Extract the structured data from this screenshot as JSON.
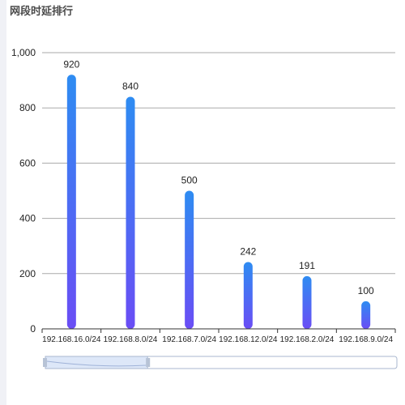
{
  "panel": {
    "title": "网段时延排行"
  },
  "colors": {
    "bar_top": "#2e8cf2",
    "bar_bottom": "#6a4df5",
    "grid": "#aaaaaa",
    "axis": "#333333",
    "zoom_fill": "#dde7f8",
    "zoom_border": "#a9b7cf"
  },
  "chart_data": {
    "type": "bar",
    "categories": [
      "192.168.16.0/24",
      "192.168.8.0/24",
      "192.168.7.0/24",
      "192.168.12.0/24",
      "192.168.2.0/24",
      "192.168.9.0/24"
    ],
    "values": [
      920,
      840,
      500,
      242,
      191,
      100
    ],
    "data_labels": [
      "920",
      "840",
      "500",
      "242",
      "191",
      "100"
    ],
    "y_ticks": [
      0,
      200,
      400,
      600,
      800,
      1000
    ],
    "y_tick_labels": [
      "0",
      "200",
      "400",
      "600",
      "800",
      "1,000"
    ],
    "ylim": [
      0,
      1000
    ],
    "grid": true,
    "title": "",
    "xlabel": "",
    "ylabel": ""
  },
  "zoom_slider": {
    "start_fraction": 0,
    "end_fraction": 0.3
  }
}
